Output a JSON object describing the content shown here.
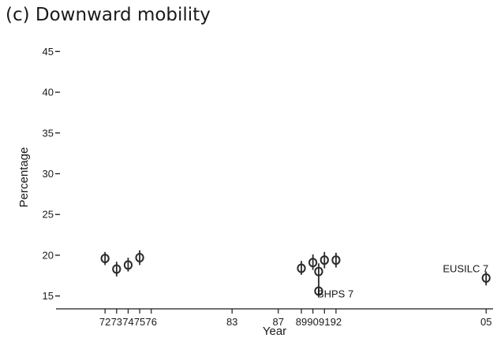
{
  "chart_data": {
    "type": "scatter",
    "title": "(c) Downward mobility",
    "xlabel": "Year",
    "ylabel": "Percentage",
    "ylim": [
      14,
      46
    ],
    "xlim": [
      1968.3,
      2005.6
    ],
    "yticks": [
      15,
      20,
      25,
      30,
      35,
      40,
      45
    ],
    "xticks": [
      {
        "value": 1972,
        "label": "72"
      },
      {
        "value": 1973,
        "label": "73"
      },
      {
        "value": 1974,
        "label": "74"
      },
      {
        "value": 1975,
        "label": "75"
      },
      {
        "value": 1976,
        "label": "76"
      },
      {
        "value": 1983,
        "label": "83"
      },
      {
        "value": 1987,
        "label": "87"
      },
      {
        "value": 1989,
        "label": "89"
      },
      {
        "value": 1990,
        "label": "90"
      },
      {
        "value": 1991,
        "label": "91"
      },
      {
        "value": 1992,
        "label": "92"
      },
      {
        "value": 2005,
        "label": "05"
      }
    ],
    "grid": false,
    "legend": "none",
    "points": [
      {
        "x": 1972,
        "y": 19.6,
        "low": 18.8,
        "high": 20.4
      },
      {
        "x": 1973,
        "y": 18.3,
        "low": 17.4,
        "high": 19.2
      },
      {
        "x": 1974,
        "y": 18.8,
        "low": 18.0,
        "high": 19.7
      },
      {
        "x": 1975,
        "y": 19.7,
        "low": 18.8,
        "high": 20.6
      },
      {
        "x": 1989,
        "y": 18.4,
        "low": 17.6,
        "high": 19.3
      },
      {
        "x": 1990,
        "y": 19.1,
        "low": 18.2,
        "high": 20.1
      },
      {
        "x": 1990.5,
        "y": 18.0,
        "low": 15.2,
        "high": 19.0
      },
      {
        "x": 1990.5,
        "y": 15.6,
        "low": 15.0,
        "high": 16.2
      },
      {
        "x": 1991,
        "y": 19.4,
        "low": 18.4,
        "high": 20.4
      },
      {
        "x": 1992,
        "y": 19.4,
        "low": 18.5,
        "high": 20.3
      },
      {
        "x": 2005,
        "y": 17.2,
        "low": 16.3,
        "high": 18.0
      }
    ],
    "annotations": [
      {
        "text": "BHPS 7",
        "x": 1990.5,
        "y": 14.8
      },
      {
        "text": "EUSILC 7",
        "x": 2005,
        "y": 17.9
      }
    ],
    "colors": {
      "marker": "#2a2a2a",
      "axis": "#1a1a1a",
      "background": "#ffffff"
    }
  }
}
